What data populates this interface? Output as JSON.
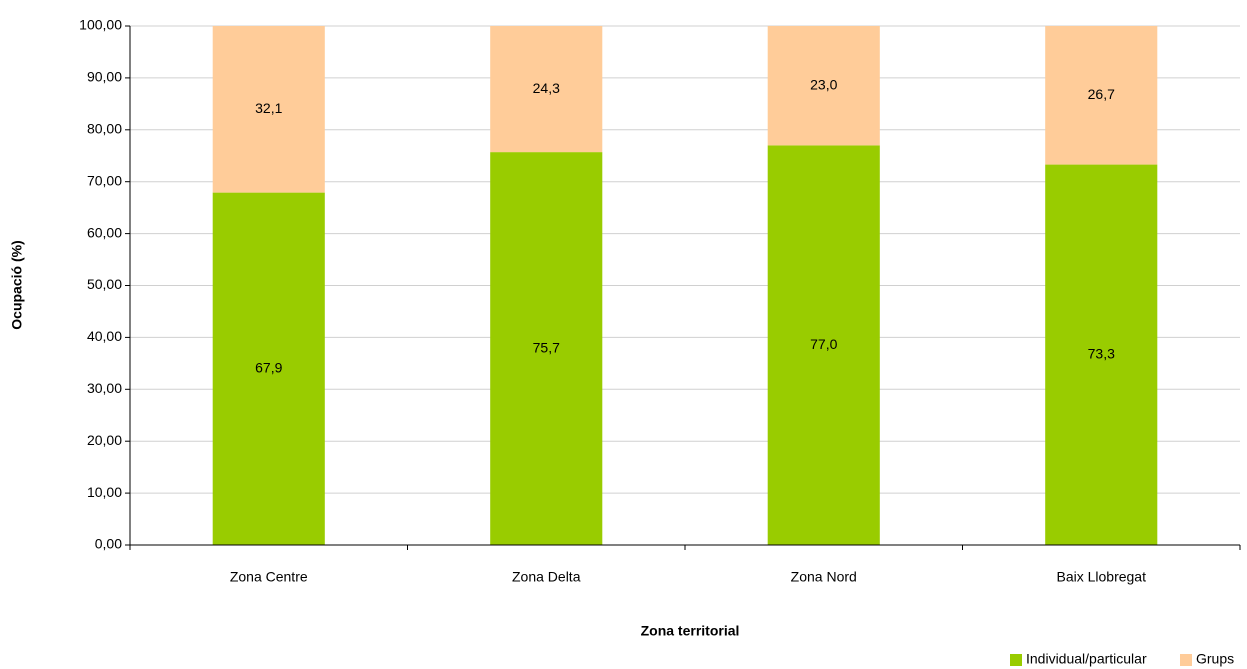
{
  "chart_data": {
    "type": "stacked-bar",
    "x_label": "Zona territorial",
    "y_label": "Ocupació (%)",
    "categories": [
      "Zona Centre",
      "Zona Delta",
      "Zona Nord",
      "Baix Llobregat"
    ],
    "series": [
      {
        "name": "Individual/particular",
        "color": "#99cc00",
        "values": [
          67.9,
          75.7,
          77.0,
          73.3
        ],
        "value_labels": [
          "67,9",
          "75,7",
          "77,0",
          "73,3"
        ]
      },
      {
        "name": "Grups",
        "color": "#ffcc99",
        "values": [
          32.1,
          24.3,
          23.0,
          26.7
        ],
        "value_labels": [
          "32,1",
          "24,3",
          "23,0",
          "26,7"
        ]
      }
    ],
    "ylim": [
      0,
      100
    ],
    "yticks": [
      {
        "value": 0,
        "label": "0,00"
      },
      {
        "value": 10,
        "label": "10,00"
      },
      {
        "value": 20,
        "label": "20,00"
      },
      {
        "value": 30,
        "label": "30,00"
      },
      {
        "value": 40,
        "label": "40,00"
      },
      {
        "value": 50,
        "label": "50,00"
      },
      {
        "value": 60,
        "label": "60,00"
      },
      {
        "value": 70,
        "label": "70,00"
      },
      {
        "value": 80,
        "label": "80,00"
      },
      {
        "value": 90,
        "label": "90,00"
      },
      {
        "value": 100,
        "label": "100,00"
      }
    ],
    "grid": true,
    "legend": "bottom-right"
  }
}
